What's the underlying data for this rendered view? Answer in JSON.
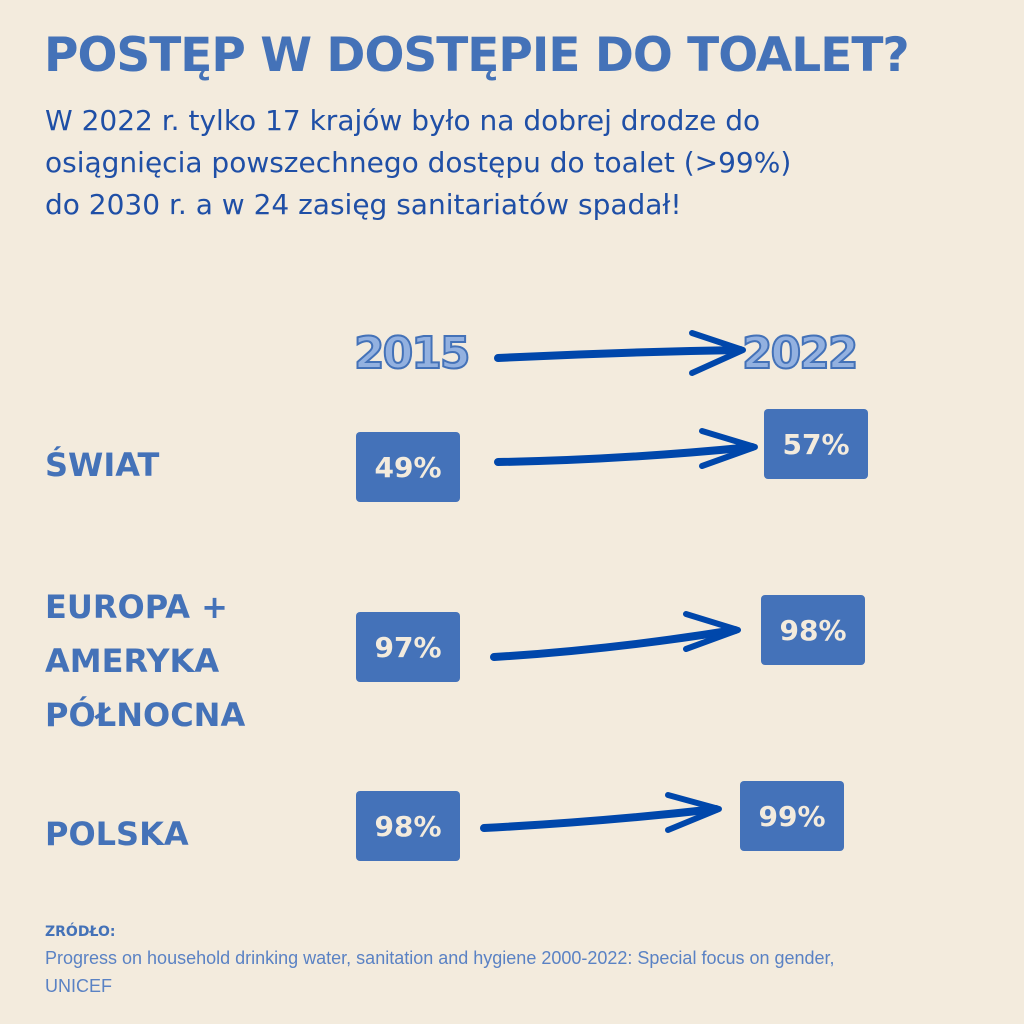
{
  "title": "POSTĘP W DOSTĘPIE DO TOALET?",
  "subtitle": [
    "W 2022 r. tylko 17 krajów było na dobrej drodze do",
    "osiągnięcia powszechnego dostępu do toalet (>99%)",
    "do 2030 r. a w 24 zasięg sanitariatów spadał!"
  ],
  "chart_data": {
    "type": "table",
    "columns": [
      "2015",
      "2022"
    ],
    "rows": [
      {
        "label_lines": [
          "ŚWIAT"
        ],
        "values": [
          "49%",
          "57%"
        ]
      },
      {
        "label_lines": [
          "EUROPA +",
          "AMERYKA",
          "PÓŁNOCNA"
        ],
        "values": [
          "97%",
          "98%"
        ]
      },
      {
        "label_lines": [
          "POLSKA"
        ],
        "values": [
          "98%",
          "99%"
        ]
      }
    ]
  },
  "source": {
    "heading": "ZRÓDŁO:",
    "lines": [
      "Progress on household drinking water, sanitation and hygiene 2000-2022: Special focus on gender,",
      "UNICEF"
    ]
  },
  "colors": {
    "background": "#f3ebdd",
    "accent": "#4472b9",
    "arrow": "#0047ab"
  }
}
